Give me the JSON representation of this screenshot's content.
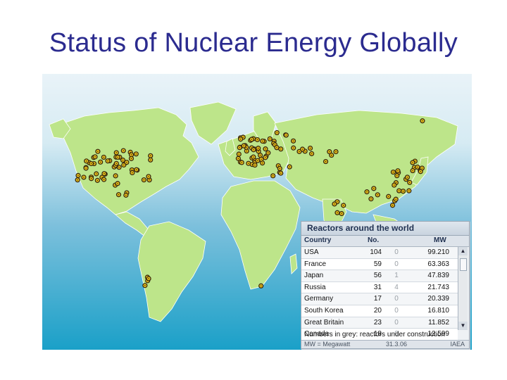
{
  "slide": {
    "title": "Status of Nuclear Energy Globally"
  },
  "map": {
    "colors": {
      "land": "#bde58a",
      "land_border": "#ffffff",
      "ocean_top": "#e9f3f8",
      "ocean_mid": "#7dc0dc",
      "ocean_bottom": "#1aa0c8",
      "reactor_fill": "#f0c419",
      "reactor_dark": "#3a2a10"
    },
    "marker_icon": "radiation-trefoil-icon"
  },
  "panel": {
    "title": "Reactors around the world",
    "headers": {
      "country": "Country",
      "number": "No.",
      "megawatt": "MW"
    },
    "rows": [
      {
        "country": "USA",
        "number": "104",
        "under_construction": "0",
        "mw": "99.210"
      },
      {
        "country": "France",
        "number": "59",
        "under_construction": "0",
        "mw": "63.363"
      },
      {
        "country": "Japan",
        "number": "56",
        "under_construction": "1",
        "mw": "47.839"
      },
      {
        "country": "Russia",
        "number": "31",
        "under_construction": "4",
        "mw": "21.743"
      },
      {
        "country": "Germany",
        "number": "17",
        "under_construction": "0",
        "mw": "20.339"
      },
      {
        "country": "South Korea",
        "number": "20",
        "under_construction": "0",
        "mw": "16.810"
      },
      {
        "country": "Great Britain",
        "number": "23",
        "under_construction": "0",
        "mw": "11.852"
      },
      {
        "country": "Canada",
        "number": "18",
        "under_construction": "0",
        "mw": "12.599"
      }
    ],
    "note": "Numbers in grey: reactors under construction",
    "footer": {
      "unit": "MW = Megawatt",
      "date": "31.3.06",
      "source": "IAEA"
    },
    "scroll_up_icon": "▲",
    "scroll_down_icon": "▼"
  }
}
